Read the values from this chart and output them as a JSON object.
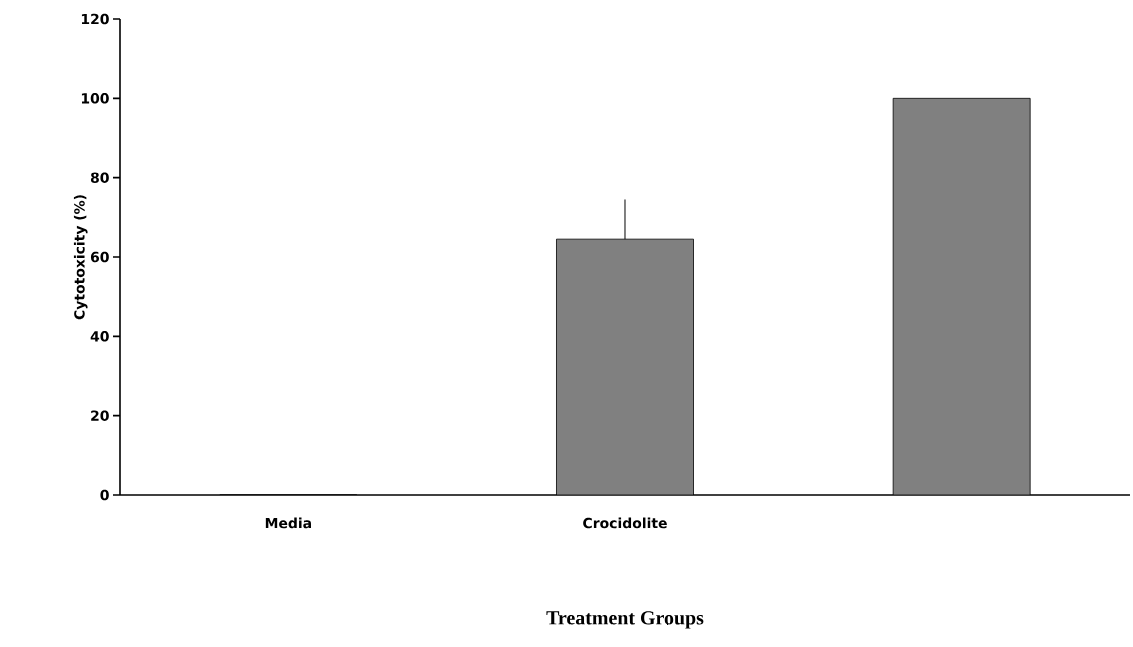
{
  "chart_data": {
    "type": "bar",
    "categories": [
      "Media",
      "Crocidolite",
      null
    ],
    "values": [
      0,
      64.5,
      100
    ],
    "errors": [
      null,
      [
        64.5,
        74.5
      ],
      null
    ],
    "color": "#808080",
    "xlabel": "Treatment Groups",
    "ylabel": "Cytotoxicity (%)",
    "ylim": [
      0,
      120
    ],
    "yticks": [
      0,
      20,
      40,
      60,
      80,
      100,
      120
    ],
    "grid": false
  }
}
